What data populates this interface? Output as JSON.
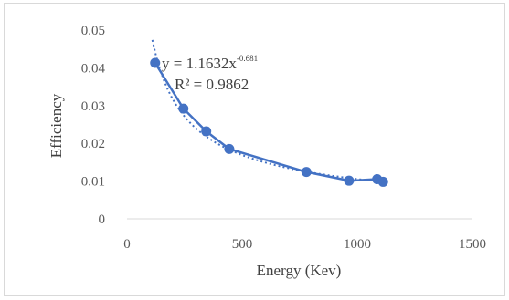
{
  "chart_data": {
    "type": "scatter",
    "xlabel": "Energy (Kev)",
    "ylabel": "Efficiency",
    "xlim": [
      0,
      1500
    ],
    "ylim": [
      0,
      0.05
    ],
    "x_ticks": [
      "0",
      "500",
      "1000",
      "1500"
    ],
    "y_ticks": [
      "0",
      "0.01",
      "0.02",
      "0.03",
      "0.04",
      "0.05"
    ],
    "grid": false,
    "legend": "none",
    "series": [
      {
        "x": [
          122,
          245,
          344,
          444,
          779,
          964,
          1086,
          1112
        ],
        "y": [
          0.0413,
          0.0292,
          0.0232,
          0.0185,
          0.0124,
          0.0101,
          0.0105,
          0.0098
        ],
        "color": "#4472c4",
        "marker": "circle",
        "line": "solid"
      }
    ],
    "trendline": {
      "type": "power",
      "coefficient": 1.1632,
      "exponent": -0.681,
      "style": "dotted",
      "color": "#4472c4",
      "x_range": [
        110,
        1112
      ]
    },
    "annotations": {
      "equation_main": "y = 1.1632x",
      "equation_exp": "-0.681",
      "r_squared": "R² = 0.9862"
    }
  }
}
